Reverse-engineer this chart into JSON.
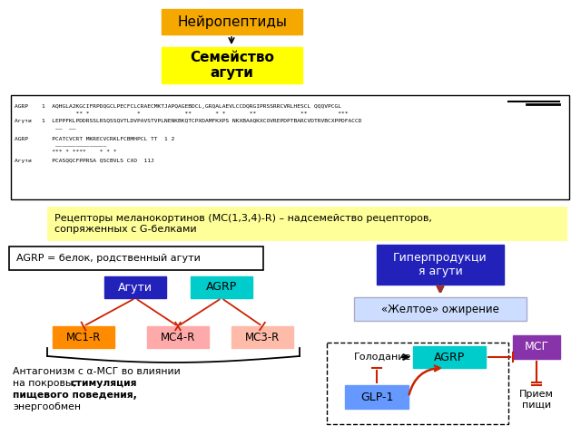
{
  "title_neuropeptides": "Нейропептиды",
  "title_neuropeptides_bg": "#F5A800",
  "title_neuropeptides_color": "#000000",
  "title_aguti": "Семейство\nагути",
  "title_aguti_bg": "#FFFF00",
  "title_aguti_color": "#000000",
  "receptor_box_text": "Рецепторы меланокортинов (MC(1,3,4)-R) – надсемейство рецепторов,\nсопряженных с G-белками",
  "receptor_box_bg": "#FFFF99",
  "receptor_box_color": "#000000",
  "agrp_label": "AGRP = белок, родственный агути",
  "aguti_box": {
    "text": "Агути",
    "bg": "#2222BB",
    "fg": "#FFFFFF"
  },
  "agrp_top_box": {
    "text": "AGRP",
    "bg": "#00CCCC",
    "fg": "#000000"
  },
  "mc1r_box": {
    "text": "MC1-R",
    "bg": "#FF8C00",
    "fg": "#000000"
  },
  "mc4r_box": {
    "text": "MC4-R",
    "bg": "#FFAAAA",
    "fg": "#000000"
  },
  "mc3r_box": {
    "text": "MC3-R",
    "bg": "#FFBBAA",
    "fg": "#000000"
  },
  "antagonism_line1": "Антагонизм с α-МСГ во влиянии",
  "antagonism_line2": "на покровы, ",
  "antagonism_bold": "стимуляция",
  "antagonism_line3": "пищевого поведения,",
  "antagonism_line4": "энергообмен",
  "hyper_box": {
    "text": "Гиперпродукци\nя агути",
    "bg": "#2222BB",
    "fg": "#FFFFFF"
  },
  "yellow_box": {
    "text": "«Желтое» ожирение",
    "bg": "#CCDDFF",
    "fg": "#000000"
  },
  "msg_box": {
    "text": "МСГ",
    "bg": "#8833AA",
    "fg": "#FFFFFF"
  },
  "fasting_text": "Голодание",
  "agrp2_box": {
    "text": "AGRP",
    "bg": "#00CCCC",
    "fg": "#000000"
  },
  "glp1_box": {
    "text": "GLP-1",
    "bg": "#6699FF",
    "fg": "#000000"
  },
  "food_text": "Прием\nпищи",
  "arrow_color": "#CC2200",
  "dark_arrow_color": "#993333",
  "bg_color": "#FFFFFF"
}
